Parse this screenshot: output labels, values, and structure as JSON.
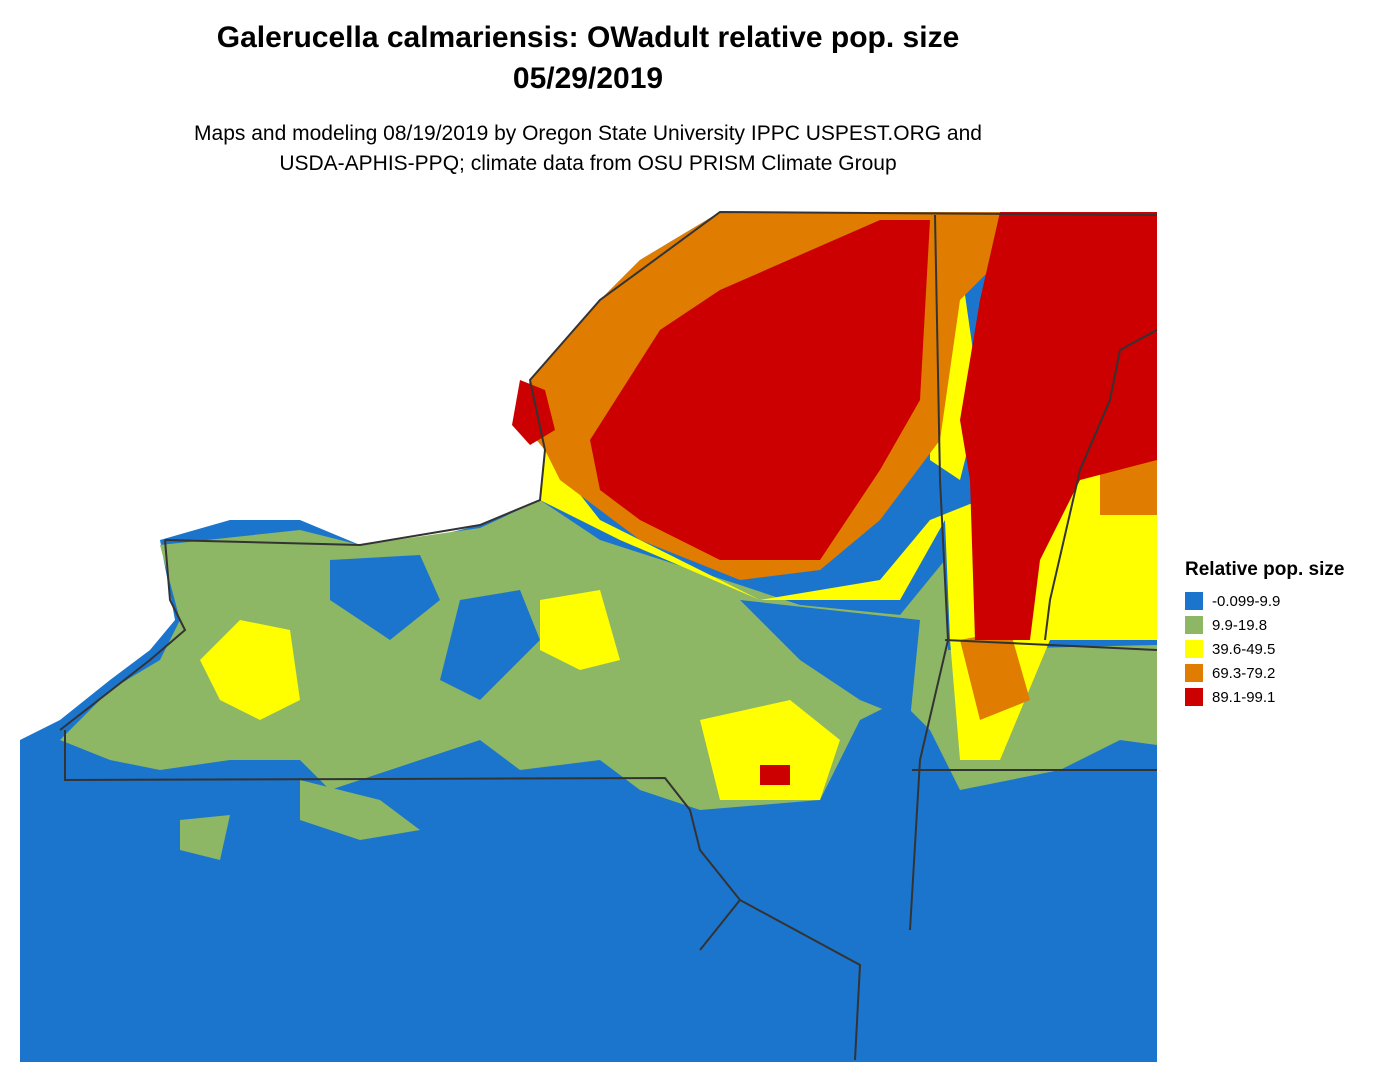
{
  "header": {
    "title": [
      "Galerucella calmariensis: OWadult relative pop. size",
      "05/29/2019"
    ],
    "subtitle": [
      "Maps and modeling 08/19/2019 by Oregon State University IPPC USPEST.ORG and",
      "USDA-APHIS-PPQ; climate data from OSU PRISM Climate Group"
    ]
  },
  "legend": {
    "title": "Relative pop. size",
    "items": [
      {
        "label": "-0.099-9.9",
        "color": "#1c75cd"
      },
      {
        "label": "9.9-19.8",
        "color": "#8db764"
      },
      {
        "label": "39.6-49.5",
        "color": "#ffff00"
      },
      {
        "label": "69.3-79.2",
        "color": "#e07c00"
      },
      {
        "label": "89.1-99.1",
        "color": "#cc0000"
      }
    ]
  }
}
